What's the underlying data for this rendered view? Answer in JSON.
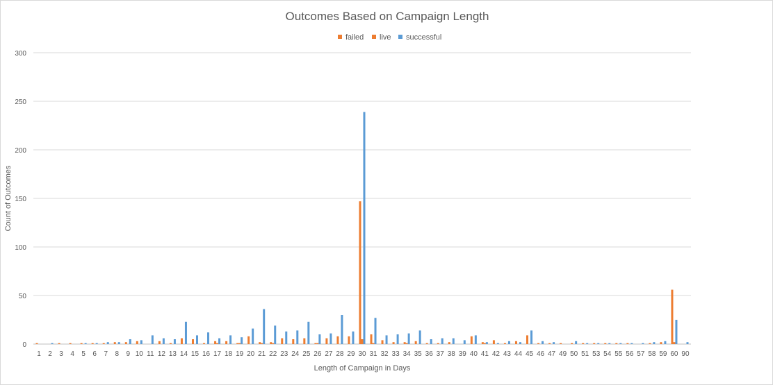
{
  "chart_data": {
    "type": "bar",
    "title": "Outcomes Based on Campaign Length",
    "xlabel": "Length  of Campaign in Days",
    "ylabel": "Count of Outcomes",
    "ylim": [
      0,
      300
    ],
    "yticks": [
      0,
      50,
      100,
      150,
      200,
      250,
      300
    ],
    "grid": true,
    "legend_position": "top-center",
    "categories": [
      "1",
      "2",
      "3",
      "4",
      "5",
      "6",
      "7",
      "8",
      "9",
      "10",
      "11",
      "12",
      "13",
      "14",
      "15",
      "16",
      "17",
      "18",
      "19",
      "20",
      "21",
      "22",
      "23",
      "24",
      "25",
      "26",
      "27",
      "28",
      "29",
      "30",
      "31",
      "32",
      "33",
      "34",
      "35",
      "36",
      "37",
      "38",
      "39",
      "40",
      "41",
      "42",
      "43",
      "44",
      "45",
      "46",
      "47",
      "49",
      "50",
      "51",
      "53",
      "54",
      "55",
      "56",
      "57",
      "58",
      "59",
      "60",
      "90"
    ],
    "series": [
      {
        "name": "failed",
        "color": "#ED7D31",
        "values": [
          1,
          0,
          1,
          1,
          1,
          1,
          1,
          2,
          2,
          3,
          0,
          3,
          1,
          6,
          5,
          1,
          3,
          3,
          1,
          8,
          2,
          2,
          6,
          5,
          6,
          1,
          6,
          8,
          8,
          147,
          10,
          4,
          2,
          2,
          3,
          1,
          1,
          2,
          0,
          8,
          2,
          4,
          1,
          3,
          9,
          1,
          1,
          1,
          1,
          1,
          1,
          1,
          1,
          1,
          0,
          1,
          2,
          56,
          0
        ]
      },
      {
        "name": "live",
        "color": "#ED7D31",
        "values": [
          0,
          0,
          0,
          0,
          0,
          0,
          0,
          0,
          0,
          0,
          0,
          0,
          0,
          0,
          0,
          0,
          1,
          0,
          1,
          0,
          1,
          1,
          0,
          0,
          0,
          1,
          0,
          0,
          0,
          5,
          1,
          0,
          0,
          1,
          0,
          0,
          0,
          0,
          0,
          0,
          1,
          0,
          0,
          0,
          0,
          0,
          0,
          0,
          0,
          0,
          0,
          0,
          0,
          0,
          0,
          0,
          0,
          2,
          0
        ]
      },
      {
        "name": "successful",
        "color": "#5B9BD5",
        "values": [
          0,
          1,
          0,
          0,
          1,
          1,
          2,
          2,
          5,
          4,
          9,
          6,
          5,
          23,
          9,
          12,
          6,
          9,
          7,
          16,
          36,
          19,
          13,
          14,
          23,
          10,
          11,
          30,
          13,
          239,
          27,
          9,
          10,
          11,
          14,
          5,
          6,
          6,
          4,
          9,
          2,
          1,
          3,
          2,
          14,
          3,
          2,
          0,
          3,
          1,
          1,
          1,
          1,
          1,
          1,
          2,
          3,
          25,
          2
        ]
      }
    ]
  }
}
